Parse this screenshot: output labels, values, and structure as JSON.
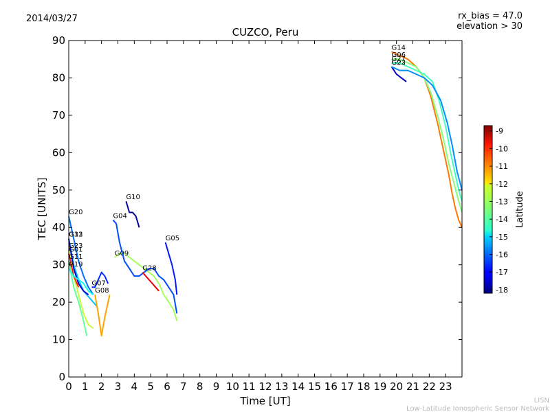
{
  "header": {
    "date": "2014/03/27",
    "rx_bias": "rx_bias = 47.0",
    "elevation": "elevation > 30"
  },
  "watermark": {
    "line1": "LISN",
    "line2": "Low-Latitude Ionospheric Sensor Network"
  },
  "chart_data": {
    "type": "line",
    "title": "CUZCO, Peru",
    "xlabel": "Time [UT]",
    "ylabel": "TEC [UNITS]",
    "xlim": [
      0,
      24
    ],
    "ylim": [
      0,
      90
    ],
    "xticks": [
      "0",
      "1",
      "2",
      "3",
      "4",
      "5",
      "6",
      "7",
      "8",
      "9",
      "10",
      "11",
      "12",
      "13",
      "14",
      "15",
      "16",
      "17",
      "18",
      "19",
      "20",
      "21",
      "22",
      "23"
    ],
    "yticks": [
      "0",
      "10",
      "20",
      "30",
      "40",
      "50",
      "60",
      "70",
      "80",
      "90"
    ],
    "grid": false,
    "colorbar": {
      "label": "Latitude",
      "min": -18.2,
      "max": -8.7,
      "ticks": [
        "-9",
        "-10",
        "-11",
        "-12",
        "-13",
        "-14",
        "-15",
        "-16",
        "-17",
        "-18"
      ],
      "colormap": "jet"
    },
    "series": [
      {
        "name": "G20",
        "lat": -16.0,
        "x": [
          0.0,
          0.3,
          0.6,
          0.9,
          1.2,
          1.5
        ],
        "y": [
          43,
          37,
          31,
          27,
          24,
          22
        ]
      },
      {
        "name": "G32",
        "lat": -15.2,
        "x": [
          0.0,
          0.3,
          0.6,
          0.9,
          1.3,
          1.7
        ],
        "y": [
          37,
          30,
          26,
          23,
          21,
          19
        ]
      },
      {
        "name": "G13",
        "lat": -17.3,
        "x": [
          0.0,
          0.3,
          0.6,
          0.9,
          1.2
        ],
        "y": [
          37,
          29,
          25,
          23,
          22
        ]
      },
      {
        "name": "G23",
        "lat": -12.8,
        "x": [
          0.0,
          0.3,
          0.6,
          0.9,
          1.2,
          1.5
        ],
        "y": [
          34,
          27,
          22,
          17,
          14,
          13
        ]
      },
      {
        "name": "G01",
        "lat": -10.2,
        "x": [
          0.0,
          0.3,
          0.6
        ],
        "y": [
          33,
          27,
          24
        ]
      },
      {
        "name": "G11",
        "lat": -13.7,
        "x": [
          0.0,
          0.3,
          0.6,
          0.9,
          1.1
        ],
        "y": [
          31,
          24,
          20,
          15,
          11
        ]
      },
      {
        "name": "G19",
        "lat": -14.5,
        "x": [
          0.0,
          0.3,
          0.6,
          0.9,
          1.2,
          1.5
        ],
        "y": [
          29,
          27,
          26,
          25,
          23,
          22
        ]
      },
      {
        "name": "G07",
        "lat": -16.6,
        "x": [
          1.4,
          1.6,
          1.8,
          2.0,
          2.2,
          2.4
        ],
        "y": [
          24,
          24,
          26,
          28,
          27,
          25
        ]
      },
      {
        "name": "G08",
        "lat": -11.4,
        "x": [
          1.6,
          1.8,
          2.0,
          2.2,
          2.5
        ],
        "y": [
          22,
          17,
          11,
          16,
          22
        ]
      },
      {
        "name": "G09",
        "lat": -13.1,
        "x": [
          2.8,
          3.1,
          3.4,
          3.7,
          4.0,
          4.3,
          4.6,
          4.9,
          5.2,
          5.5,
          5.8,
          6.1,
          6.4,
          6.6
        ],
        "y": [
          32,
          33,
          33,
          32,
          31,
          30,
          29,
          28,
          27,
          25,
          22,
          20,
          18,
          15
        ]
      },
      {
        "name": "G04",
        "lat": -16.3,
        "x": [
          2.7,
          2.9,
          3.1,
          3.4,
          3.7,
          4.0,
          4.3,
          4.6,
          4.9,
          5.2,
          5.5,
          5.8,
          6.1,
          6.4,
          6.6
        ],
        "y": [
          42,
          41,
          36,
          31,
          29,
          27,
          27,
          28,
          29,
          29,
          27,
          26,
          24,
          22,
          17
        ]
      },
      {
        "name": "G10",
        "lat": -17.9,
        "x": [
          3.5,
          3.7,
          3.9,
          4.1,
          4.3
        ],
        "y": [
          47,
          44,
          44,
          43,
          40
        ]
      },
      {
        "name": "G28",
        "lat": -9.7,
        "x": [
          4.5,
          4.7,
          4.9,
          5.1,
          5.3,
          5.5
        ],
        "y": [
          28,
          27,
          26,
          25,
          24,
          23
        ]
      },
      {
        "name": "G05",
        "lat": -16.8,
        "x": [
          5.9,
          6.1,
          6.3,
          6.5,
          6.6
        ],
        "y": [
          36,
          33,
          30,
          26,
          22
        ]
      },
      {
        "name": "G14",
        "lat": -11.0,
        "x": [
          19.7,
          20.2,
          20.7,
          21.2,
          21.7,
          22.1,
          22.5,
          22.9,
          23.2,
          23.4,
          23.6,
          23.8,
          24.0
        ],
        "y": [
          87,
          86,
          85,
          83,
          80,
          75,
          68,
          60,
          54,
          49,
          45,
          42,
          40
        ]
      },
      {
        "name": "G03",
        "lat": -17.6,
        "x": [
          19.7,
          20.0,
          20.3,
          20.6
        ],
        "y": [
          83,
          81,
          80,
          79
        ]
      },
      {
        "name": "G06",
        "lat": -13.4,
        "x": [
          19.7,
          20.2,
          20.7,
          21.2,
          21.7,
          22.1,
          22.5,
          22.9,
          23.2,
          23.5,
          23.8,
          24.0
        ],
        "y": [
          85,
          85,
          84,
          83,
          80,
          76,
          70,
          63,
          57,
          52,
          47,
          44
        ]
      },
      {
        "name": "G27",
        "lat": -14.0,
        "x": [
          19.7,
          20.2,
          20.7,
          21.2,
          21.7,
          22.2,
          22.6,
          23.0,
          23.3,
          23.6,
          23.8,
          24.0
        ],
        "y": [
          84,
          84,
          83,
          82,
          81,
          79,
          74,
          67,
          60,
          54,
          50,
          47
        ]
      },
      {
        "name": "G22",
        "lat": -15.7,
        "x": [
          19.7,
          20.2,
          20.7,
          21.2,
          21.7,
          22.2,
          22.7,
          23.1,
          23.4,
          23.7,
          24.0
        ],
        "y": [
          83,
          82,
          82,
          81,
          80,
          78,
          74,
          68,
          62,
          55,
          50
        ]
      }
    ]
  }
}
